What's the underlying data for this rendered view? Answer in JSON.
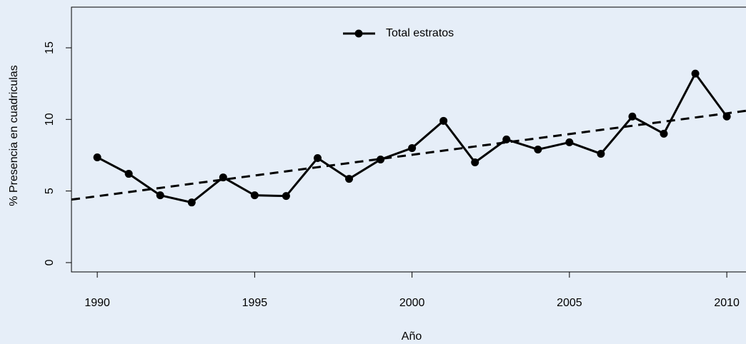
{
  "chart_data": {
    "type": "line",
    "x_label": "Año",
    "y_label": "% Presencia en cuadriculas",
    "x": [
      1990,
      1991,
      1992,
      1993,
      1994,
      1995,
      1996,
      1997,
      1998,
      1999,
      2000,
      2001,
      2002,
      2003,
      2004,
      2005,
      2006,
      2007,
      2008,
      2009,
      2010
    ],
    "series": [
      {
        "name": "Total estratos",
        "color": "#000000",
        "values": [
          7.35,
          6.2,
          4.7,
          4.2,
          5.95,
          4.7,
          4.65,
          7.3,
          5.85,
          7.2,
          8.0,
          9.9,
          7.0,
          8.6,
          7.9,
          8.4,
          7.6,
          10.2,
          9.0,
          13.2,
          10.2
        ]
      }
    ],
    "trend": {
      "x": [
        1989.18,
        2010.61
      ],
      "values": [
        4.4,
        10.6
      ]
    },
    "xlim": [
      1989.18,
      2010.61
    ],
    "ylim": [
      -0.65,
      17.84
    ],
    "xticks": [
      1990,
      1995,
      2000,
      2005,
      2010
    ],
    "yticks": [
      0,
      5,
      10,
      15
    ],
    "legend": "top"
  }
}
